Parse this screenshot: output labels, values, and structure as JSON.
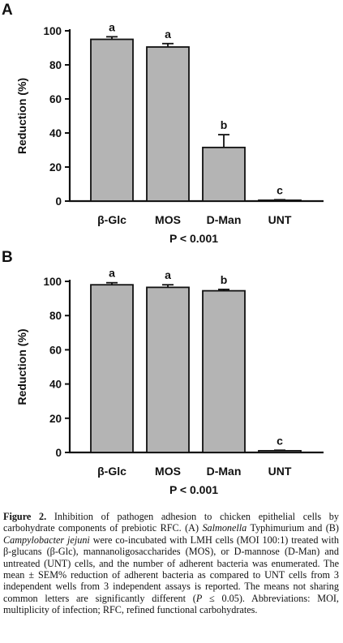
{
  "chart_data": [
    {
      "type": "bar",
      "panel_label": "A",
      "categories": [
        "β-Glc",
        "MOS",
        "D-Man",
        "UNT"
      ],
      "values": [
        95,
        90.5,
        31.5,
        0.5
      ],
      "errors": [
        1.5,
        2,
        7.5,
        0.3
      ],
      "significance_letters": [
        "a",
        "a",
        "b",
        "c"
      ],
      "ylabel": "Reduction (%)",
      "yticks": [
        0,
        20,
        40,
        60,
        80,
        100
      ],
      "ylim": [
        0,
        100
      ],
      "p_value_label": "P < 0.001",
      "bar_color": "#b4b4b4",
      "grid": false
    },
    {
      "type": "bar",
      "panel_label": "B",
      "categories": [
        "β-Glc",
        "MOS",
        "D-Man",
        "UNT"
      ],
      "values": [
        98,
        96.5,
        94.5,
        1
      ],
      "errors": [
        1.2,
        1.5,
        0.8,
        0.3
      ],
      "significance_letters": [
        "a",
        "a",
        "b",
        "c"
      ],
      "ylabel": "Reduction (%)",
      "yticks": [
        0,
        20,
        40,
        60,
        80,
        100
      ],
      "ylim": [
        0,
        100
      ],
      "p_value_label": "P < 0.001",
      "bar_color": "#b4b4b4",
      "grid": false
    }
  ],
  "caption": {
    "figure_label": "Figure 2.",
    "t1": " Inhibition of pathogen adhesion to chicken epithelial cells by carbohydrate components of prebiotic RFC. (A) ",
    "i1": "Salmonella",
    "t2": " Typhimurium and (B) ",
    "i2": "Campylobacter jejuni",
    "t3": " were co-incubated with LMH cells (MOI 100:1) treated with β-glucans (β-Glc), mannanoligosaccharides (MOS), or D-mannose (D-Man) and untreated (UNT) cells, and the number of adherent bacteria was enumerated. The mean ± SEM% reduction of adherent bacteria as compared to UNT cells from 3 independent wells from 3 independent assays is reported. The means not sharing common letters are significantly different (",
    "i3": "P",
    "t4": " ≤ 0.05). Abbreviations: MOI, multiplicity of infection; RFC, refined functional carbohydrates."
  }
}
